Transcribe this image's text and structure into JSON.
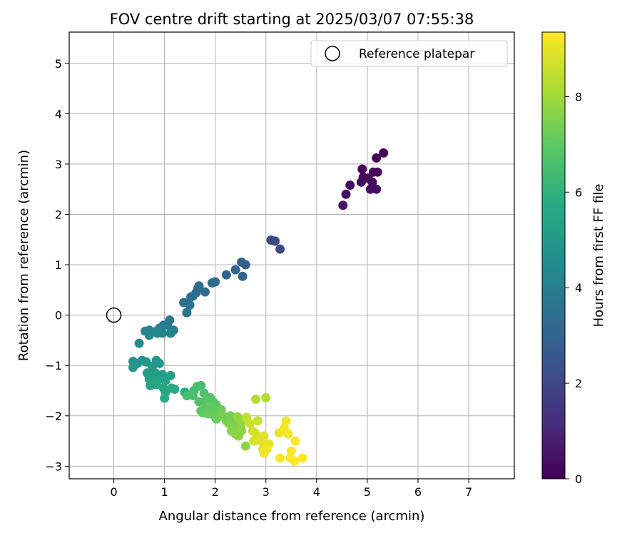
{
  "chart_data": {
    "type": "scatter",
    "title": "FOV centre drift starting at 2025/03/07 07:55:38",
    "xlabel": "Angular distance from reference (arcmin)",
    "ylabel": "Rotation from reference (arcmin)",
    "xlim": [
      -0.88,
      7.9
    ],
    "ylim": [
      -3.25,
      5.62
    ],
    "xticks": [
      0,
      1,
      2,
      3,
      4,
      5,
      6,
      7
    ],
    "yticks": [
      -3,
      -2,
      -1,
      0,
      1,
      2,
      3,
      4,
      5
    ],
    "grid": true,
    "legend": {
      "position": "top-right",
      "entries": [
        "Reference platepar"
      ]
    },
    "reference_point": {
      "x": 0,
      "y": 0
    },
    "colorbar": {
      "label": "Hours from first FF file",
      "min": 0,
      "max": 9.35,
      "ticks": [
        0,
        2,
        4,
        6,
        8
      ],
      "colormap": "viridis"
    },
    "points": [
      {
        "x": 5.32,
        "y": 3.22,
        "c": 0.1
      },
      {
        "x": 5.18,
        "y": 3.12,
        "c": 0.1
      },
      {
        "x": 4.9,
        "y": 2.9,
        "c": 0.2
      },
      {
        "x": 5.12,
        "y": 2.84,
        "c": 0.2
      },
      {
        "x": 5.2,
        "y": 2.84,
        "c": 0.2
      },
      {
        "x": 4.92,
        "y": 2.74,
        "c": 0.2
      },
      {
        "x": 5.02,
        "y": 2.72,
        "c": 0.3
      },
      {
        "x": 4.88,
        "y": 2.64,
        "c": 0.3
      },
      {
        "x": 5.1,
        "y": 2.64,
        "c": 0.3
      },
      {
        "x": 4.66,
        "y": 2.58,
        "c": 0.3
      },
      {
        "x": 5.06,
        "y": 2.5,
        "c": 0.4
      },
      {
        "x": 5.18,
        "y": 2.5,
        "c": 0.4
      },
      {
        "x": 4.58,
        "y": 2.4,
        "c": 0.4
      },
      {
        "x": 4.52,
        "y": 2.18,
        "c": 0.5
      },
      {
        "x": 3.1,
        "y": 1.49,
        "c": 2.0
      },
      {
        "x": 3.18,
        "y": 1.47,
        "c": 2.0
      },
      {
        "x": 3.28,
        "y": 1.31,
        "c": 2.1
      },
      {
        "x": 2.52,
        "y": 1.05,
        "c": 2.9
      },
      {
        "x": 2.6,
        "y": 1.0,
        "c": 2.9
      },
      {
        "x": 2.4,
        "y": 0.9,
        "c": 3.0
      },
      {
        "x": 2.22,
        "y": 0.8,
        "c": 3.0
      },
      {
        "x": 2.54,
        "y": 0.77,
        "c": 3.0
      },
      {
        "x": 2.0,
        "y": 0.66,
        "c": 3.2
      },
      {
        "x": 1.94,
        "y": 0.64,
        "c": 3.2
      },
      {
        "x": 1.68,
        "y": 0.58,
        "c": 3.3
      },
      {
        "x": 1.66,
        "y": 0.53,
        "c": 3.3
      },
      {
        "x": 1.8,
        "y": 0.46,
        "c": 3.3
      },
      {
        "x": 1.62,
        "y": 0.44,
        "c": 3.4
      },
      {
        "x": 1.52,
        "y": 0.36,
        "c": 3.4
      },
      {
        "x": 1.56,
        "y": 0.38,
        "c": 3.4
      },
      {
        "x": 1.38,
        "y": 0.25,
        "c": 3.5
      },
      {
        "x": 1.5,
        "y": 0.2,
        "c": 3.5
      },
      {
        "x": 1.44,
        "y": 0.05,
        "c": 3.6
      },
      {
        "x": 1.1,
        "y": -0.1,
        "c": 3.8
      },
      {
        "x": 0.98,
        "y": -0.2,
        "c": 3.9
      },
      {
        "x": 1.06,
        "y": -0.2,
        "c": 3.9
      },
      {
        "x": 0.9,
        "y": -0.26,
        "c": 4.0
      },
      {
        "x": 1.18,
        "y": -0.3,
        "c": 4.0
      },
      {
        "x": 0.7,
        "y": -0.3,
        "c": 4.1
      },
      {
        "x": 0.62,
        "y": -0.32,
        "c": 4.1
      },
      {
        "x": 0.82,
        "y": -0.33,
        "c": 4.2
      },
      {
        "x": 0.96,
        "y": -0.36,
        "c": 4.2
      },
      {
        "x": 1.12,
        "y": -0.36,
        "c": 4.2
      },
      {
        "x": 0.86,
        "y": -0.36,
        "c": 4.3
      },
      {
        "x": 0.7,
        "y": -0.4,
        "c": 4.3
      },
      {
        "x": 0.5,
        "y": -0.56,
        "c": 4.5
      },
      {
        "x": 0.56,
        "y": -0.9,
        "c": 4.8
      },
      {
        "x": 0.38,
        "y": -0.92,
        "c": 4.8
      },
      {
        "x": 0.46,
        "y": -0.96,
        "c": 4.8
      },
      {
        "x": 0.64,
        "y": -0.93,
        "c": 4.9
      },
      {
        "x": 0.84,
        "y": -0.9,
        "c": 4.9
      },
      {
        "x": 0.9,
        "y": -0.96,
        "c": 5.0
      },
      {
        "x": 0.38,
        "y": -1.04,
        "c": 5.0
      },
      {
        "x": 0.76,
        "y": -1.02,
        "c": 5.0
      },
      {
        "x": 0.66,
        "y": -1.15,
        "c": 5.1
      },
      {
        "x": 0.82,
        "y": -1.15,
        "c": 5.2
      },
      {
        "x": 0.96,
        "y": -1.18,
        "c": 5.2
      },
      {
        "x": 1.12,
        "y": -1.2,
        "c": 5.3
      },
      {
        "x": 0.7,
        "y": -1.27,
        "c": 5.3
      },
      {
        "x": 0.86,
        "y": -1.3,
        "c": 5.4
      },
      {
        "x": 1.02,
        "y": -1.3,
        "c": 5.4
      },
      {
        "x": 0.72,
        "y": -1.4,
        "c": 5.5
      },
      {
        "x": 0.84,
        "y": -1.38,
        "c": 5.5
      },
      {
        "x": 0.98,
        "y": -1.45,
        "c": 5.6
      },
      {
        "x": 1.14,
        "y": -1.45,
        "c": 5.6
      },
      {
        "x": 1.2,
        "y": -1.47,
        "c": 5.7
      },
      {
        "x": 1.02,
        "y": -1.53,
        "c": 5.7
      },
      {
        "x": 1.0,
        "y": -1.65,
        "c": 5.8
      },
      {
        "x": 1.4,
        "y": -1.53,
        "c": 5.8
      },
      {
        "x": 1.64,
        "y": -1.42,
        "c": 6.5
      },
      {
        "x": 1.72,
        "y": -1.4,
        "c": 6.5
      },
      {
        "x": 1.58,
        "y": -1.5,
        "c": 6.5
      },
      {
        "x": 1.44,
        "y": -1.6,
        "c": 6.6
      },
      {
        "x": 1.56,
        "y": -1.6,
        "c": 6.6
      },
      {
        "x": 1.78,
        "y": -1.55,
        "c": 6.7
      },
      {
        "x": 1.68,
        "y": -1.72,
        "c": 6.7
      },
      {
        "x": 1.82,
        "y": -1.7,
        "c": 6.8
      },
      {
        "x": 1.9,
        "y": -1.64,
        "c": 6.8
      },
      {
        "x": 1.96,
        "y": -1.72,
        "c": 6.8
      },
      {
        "x": 2.02,
        "y": -1.78,
        "c": 6.9
      },
      {
        "x": 1.72,
        "y": -1.9,
        "c": 6.9
      },
      {
        "x": 1.8,
        "y": -1.86,
        "c": 6.9
      },
      {
        "x": 1.88,
        "y": -1.82,
        "c": 7.0
      },
      {
        "x": 1.96,
        "y": -1.86,
        "c": 7.0
      },
      {
        "x": 1.76,
        "y": -1.94,
        "c": 7.0
      },
      {
        "x": 1.86,
        "y": -1.96,
        "c": 7.1
      },
      {
        "x": 1.96,
        "y": -1.98,
        "c": 7.1
      },
      {
        "x": 2.08,
        "y": -1.92,
        "c": 7.1
      },
      {
        "x": 2.12,
        "y": -1.88,
        "c": 7.2
      },
      {
        "x": 2.18,
        "y": -2.02,
        "c": 7.2
      },
      {
        "x": 2.02,
        "y": -2.06,
        "c": 7.2
      },
      {
        "x": 2.1,
        "y": -2.0,
        "c": 7.3
      },
      {
        "x": 2.22,
        "y": -2.1,
        "c": 7.3
      },
      {
        "x": 2.3,
        "y": -2.0,
        "c": 7.4
      },
      {
        "x": 2.36,
        "y": -2.1,
        "c": 7.4
      },
      {
        "x": 2.44,
        "y": -2.12,
        "c": 7.4
      },
      {
        "x": 2.28,
        "y": -2.16,
        "c": 7.5
      },
      {
        "x": 2.36,
        "y": -2.22,
        "c": 7.5
      },
      {
        "x": 2.42,
        "y": -2.26,
        "c": 7.5
      },
      {
        "x": 2.5,
        "y": -2.22,
        "c": 7.6
      },
      {
        "x": 2.32,
        "y": -2.3,
        "c": 7.6
      },
      {
        "x": 2.4,
        "y": -2.36,
        "c": 7.6
      },
      {
        "x": 2.46,
        "y": -2.4,
        "c": 7.7
      },
      {
        "x": 2.52,
        "y": -2.3,
        "c": 7.7
      },
      {
        "x": 2.6,
        "y": -2.6,
        "c": 7.7
      },
      {
        "x": 2.52,
        "y": -2.1,
        "c": 7.8
      },
      {
        "x": 2.44,
        "y": -2.02,
        "c": 7.8
      },
      {
        "x": 2.8,
        "y": -1.67,
        "c": 8.3
      },
      {
        "x": 3.0,
        "y": -1.64,
        "c": 8.3
      },
      {
        "x": 2.62,
        "y": -2.03,
        "c": 8.5
      },
      {
        "x": 2.68,
        "y": -2.15,
        "c": 8.6
      },
      {
        "x": 2.84,
        "y": -2.1,
        "c": 8.6
      },
      {
        "x": 2.74,
        "y": -2.3,
        "c": 8.7
      },
      {
        "x": 2.8,
        "y": -2.36,
        "c": 8.7
      },
      {
        "x": 2.76,
        "y": -2.5,
        "c": 8.8
      },
      {
        "x": 2.88,
        "y": -2.42,
        "c": 8.8
      },
      {
        "x": 2.96,
        "y": -2.4,
        "c": 8.9
      },
      {
        "x": 2.9,
        "y": -2.5,
        "c": 8.9
      },
      {
        "x": 2.98,
        "y": -2.56,
        "c": 9.0
      },
      {
        "x": 3.06,
        "y": -2.56,
        "c": 9.0
      },
      {
        "x": 2.94,
        "y": -2.66,
        "c": 9.0
      },
      {
        "x": 3.02,
        "y": -2.66,
        "c": 9.1
      },
      {
        "x": 2.96,
        "y": -2.74,
        "c": 9.1
      },
      {
        "x": 3.26,
        "y": -2.34,
        "c": 9.1
      },
      {
        "x": 3.4,
        "y": -2.1,
        "c": 9.2
      },
      {
        "x": 3.36,
        "y": -2.24,
        "c": 9.2
      },
      {
        "x": 3.44,
        "y": -2.36,
        "c": 9.2
      },
      {
        "x": 3.58,
        "y": -2.5,
        "c": 9.3
      },
      {
        "x": 3.5,
        "y": -2.7,
        "c": 9.3
      },
      {
        "x": 3.28,
        "y": -2.84,
        "c": 9.3
      },
      {
        "x": 3.48,
        "y": -2.84,
        "c": 9.3
      },
      {
        "x": 3.56,
        "y": -2.9,
        "c": 9.35
      },
      {
        "x": 3.72,
        "y": -2.84,
        "c": 9.35
      }
    ]
  }
}
